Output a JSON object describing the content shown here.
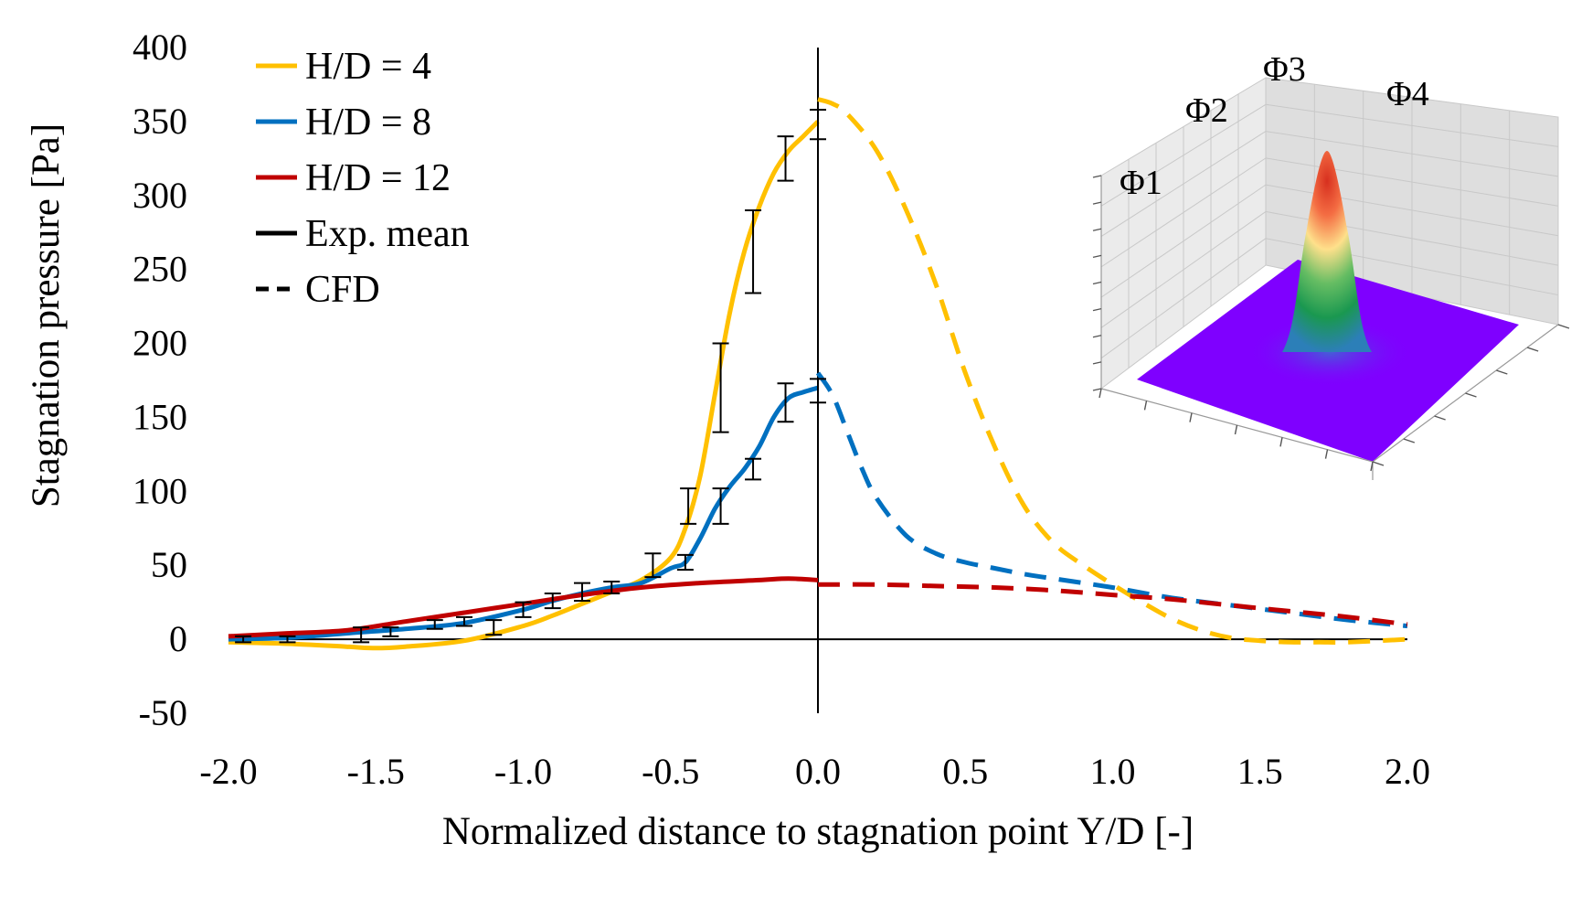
{
  "chart_data": {
    "type": "line",
    "xlabel": "Normalized distance to stagnation point Y/D [-]",
    "ylabel": "Stagnation pressure [Pa]",
    "xlim": [
      -2.0,
      2.0
    ],
    "ylim": [
      -50,
      400
    ],
    "x_ticks": [
      "-2.0",
      "-1.5",
      "-1.0",
      "-0.5",
      "0.0",
      "0.5",
      "1.0",
      "1.5",
      "2.0"
    ],
    "y_ticks": [
      "-50",
      "0",
      "50",
      "100",
      "150",
      "200",
      "250",
      "300",
      "350",
      "400"
    ],
    "legend": [
      {
        "label": "H/D = 4",
        "color": "#FFC000",
        "style": "solid"
      },
      {
        "label": "H/D = 8",
        "color": "#0070C0",
        "style": "solid"
      },
      {
        "label": "H/D = 12",
        "color": "#C00000",
        "style": "solid"
      },
      {
        "label": "Exp. mean",
        "color": "#000000",
        "style": "solid"
      },
      {
        "label": "CFD",
        "color": "#000000",
        "style": "dashed"
      }
    ],
    "series": [
      {
        "name": "H/D = 4 (Exp. mean)",
        "color": "#FFC000",
        "style": "solid",
        "x": [
          -2.0,
          -1.8,
          -1.6,
          -1.5,
          -1.4,
          -1.2,
          -1.0,
          -0.9,
          -0.8,
          -0.7,
          -0.6,
          -0.5,
          -0.45,
          -0.4,
          -0.35,
          -0.3,
          -0.25,
          -0.2,
          -0.15,
          -0.1,
          -0.05,
          0.0
        ],
        "y": [
          -2,
          -3,
          -5,
          -6,
          -5,
          -1,
          9,
          16,
          24,
          32,
          40,
          55,
          75,
          110,
          165,
          220,
          262,
          292,
          315,
          330,
          340,
          350
        ]
      },
      {
        "name": "H/D = 4 (CFD)",
        "color": "#FFC000",
        "style": "dashed",
        "x": [
          0.0,
          0.05,
          0.1,
          0.2,
          0.3,
          0.4,
          0.5,
          0.6,
          0.7,
          0.8,
          0.9,
          1.0,
          1.1,
          1.2,
          1.3,
          1.4,
          1.5,
          1.6,
          1.7,
          1.8,
          2.0
        ],
        "y": [
          365,
          362,
          355,
          330,
          290,
          240,
          180,
          130,
          90,
          65,
          50,
          37,
          25,
          14,
          6,
          1,
          -1,
          -2,
          -2,
          -2,
          0
        ]
      },
      {
        "name": "H/D = 8 (Exp. mean)",
        "color": "#0070C0",
        "style": "solid",
        "x": [
          -2.0,
          -1.8,
          -1.6,
          -1.4,
          -1.2,
          -1.0,
          -0.9,
          -0.8,
          -0.7,
          -0.6,
          -0.5,
          -0.45,
          -0.4,
          -0.35,
          -0.3,
          -0.25,
          -0.2,
          -0.15,
          -0.1,
          -0.05,
          0.0
        ],
        "y": [
          0,
          1,
          4,
          7,
          11,
          20,
          26,
          31,
          35,
          38,
          48,
          52,
          68,
          88,
          103,
          115,
          130,
          150,
          163,
          167,
          170
        ]
      },
      {
        "name": "H/D = 8 (CFD)",
        "color": "#0070C0",
        "style": "dashed",
        "x": [
          0.0,
          0.05,
          0.1,
          0.15,
          0.2,
          0.3,
          0.4,
          0.5,
          0.6,
          0.7,
          0.8,
          1.0,
          1.2,
          1.4,
          1.6,
          1.8,
          2.0
        ],
        "y": [
          180,
          165,
          140,
          115,
          95,
          70,
          58,
          52,
          48,
          44,
          41,
          35,
          28,
          23,
          18,
          13,
          9
        ]
      },
      {
        "name": "H/D = 12 (Exp. mean)",
        "color": "#C00000",
        "style": "solid",
        "x": [
          -2.0,
          -1.8,
          -1.6,
          -1.4,
          -1.2,
          -1.0,
          -0.8,
          -0.6,
          -0.4,
          -0.2,
          -0.1,
          0.0
        ],
        "y": [
          2,
          4,
          6,
          12,
          18,
          24,
          30,
          35,
          38,
          40,
          41,
          40
        ]
      },
      {
        "name": "H/D = 12 (CFD)",
        "color": "#C00000",
        "style": "dashed",
        "x": [
          0.0,
          0.2,
          0.4,
          0.6,
          0.8,
          1.0,
          1.2,
          1.4,
          1.6,
          1.8,
          2.0
        ],
        "y": [
          37,
          37,
          36,
          35,
          33,
          30,
          27,
          23,
          19,
          15,
          10
        ]
      }
    ],
    "error_bars": [
      {
        "x": -1.95,
        "y": 0,
        "err": 2
      },
      {
        "x": -1.8,
        "y": 0,
        "err": 2
      },
      {
        "x": -1.55,
        "y": 3,
        "err": 5
      },
      {
        "x": -1.45,
        "y": 5,
        "err": 3
      },
      {
        "x": -1.3,
        "y": 10,
        "err": 3
      },
      {
        "x": -1.2,
        "y": 12,
        "err": 3
      },
      {
        "x": -1.1,
        "y": 8,
        "err": 5
      },
      {
        "x": -1.0,
        "y": 20,
        "err": 5
      },
      {
        "x": -0.9,
        "y": 26,
        "err": 5
      },
      {
        "x": -0.8,
        "y": 32,
        "err": 6
      },
      {
        "x": -0.7,
        "y": 35,
        "err": 4
      },
      {
        "x": -0.56,
        "y": 50,
        "err": 8
      },
      {
        "x": -0.45,
        "y": 52,
        "err": 5
      },
      {
        "x": -0.44,
        "y": 90,
        "err": 12
      },
      {
        "x": -0.33,
        "y": 90,
        "err": 12
      },
      {
        "x": -0.33,
        "y": 170,
        "err": 30
      },
      {
        "x": -0.22,
        "y": 115,
        "err": 7
      },
      {
        "x": -0.22,
        "y": 262,
        "err": 28
      },
      {
        "x": -0.11,
        "y": 160,
        "err": 13
      },
      {
        "x": -0.11,
        "y": 325,
        "err": 15
      },
      {
        "x": 0.0,
        "y": 168,
        "err": 8
      },
      {
        "x": 0.0,
        "y": 348,
        "err": 10
      }
    ],
    "inset": {
      "type": "3d-surface",
      "labels": [
        "Φ1",
        "Φ2",
        "Φ3",
        "Φ4"
      ],
      "floor_color": "#7F00FF",
      "peak_colors": [
        "#D73027",
        "#FC8D59",
        "#FEE08B",
        "#91CF60",
        "#1A9850",
        "#2C7FB8"
      ]
    }
  }
}
